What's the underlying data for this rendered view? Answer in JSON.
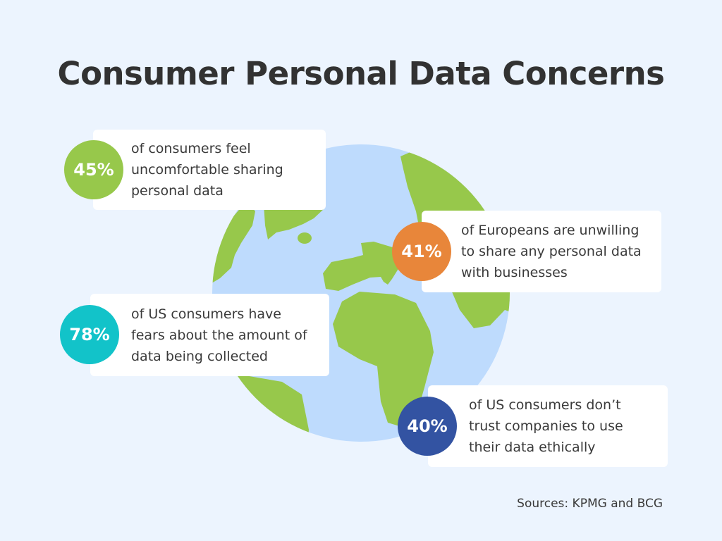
{
  "title": "Consumer Personal Data Concerns",
  "stats": [
    {
      "value": "45%",
      "text": [
        "of consumers feel",
        "uncomfortable sharing",
        "personal data"
      ],
      "color": "#97c84b"
    },
    {
      "value": "41%",
      "text": [
        "of Europeans are unwilling",
        "to share any personal data",
        "with businesses"
      ],
      "color": "#e8863a"
    },
    {
      "value": "78%",
      "text": [
        "of US consumers have",
        "fears about the amount of",
        "data being collected"
      ],
      "color": "#12c3c9"
    },
    {
      "value": "40%",
      "text": [
        "of US consumers don’t",
        "trust companies to use",
        "their data ethically"
      ],
      "color": "#3353a2"
    }
  ],
  "sources": "Sources: KPMG and BCG",
  "colors": {
    "background": "#ecf4fe",
    "ocean": "#bedbfd",
    "land": "#97c84b"
  }
}
